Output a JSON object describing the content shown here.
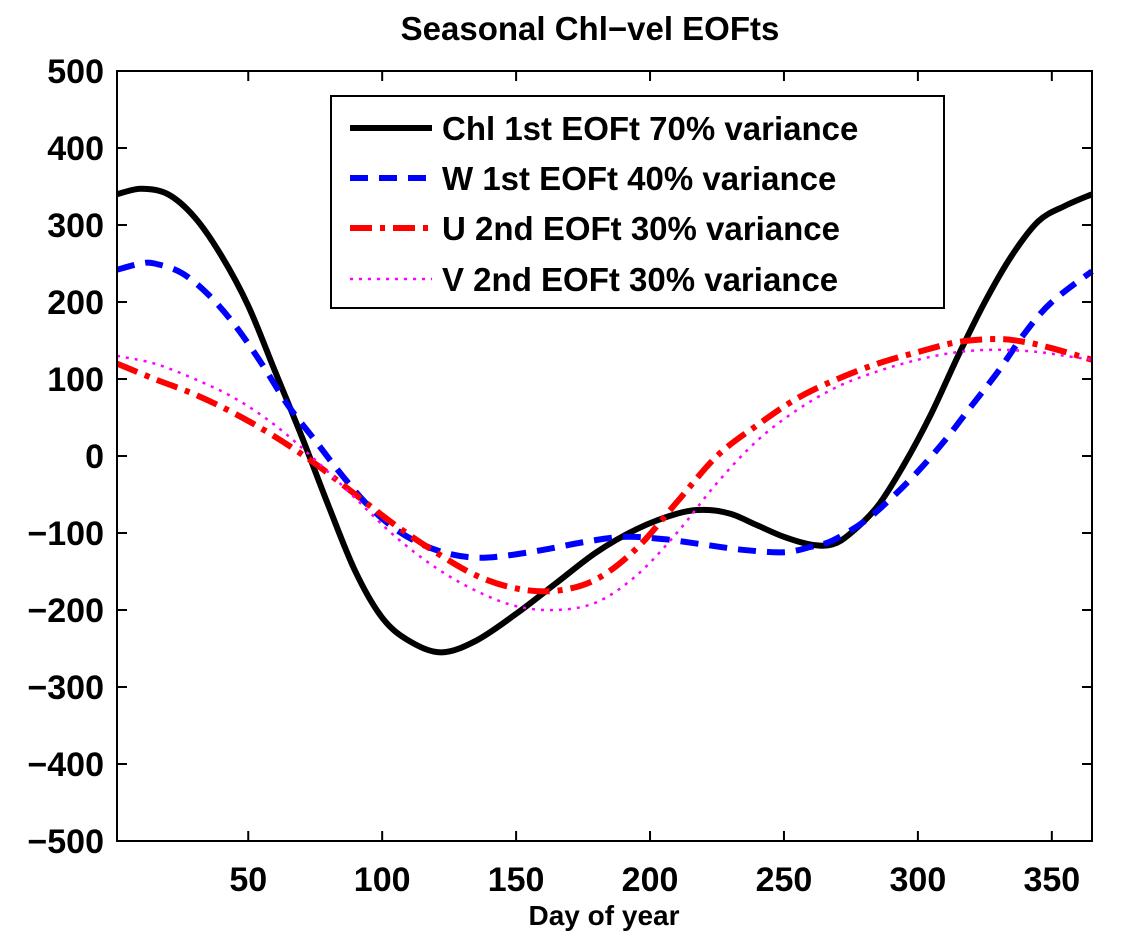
{
  "chart_data": {
    "type": "line",
    "title": "Seasonal Chl−vel EOFts",
    "xlabel": "Day of year",
    "ylabel": "",
    "xlim": [
      1,
      365
    ],
    "ylim": [
      -500,
      500
    ],
    "xticks": [
      50,
      100,
      150,
      200,
      250,
      300,
      350
    ],
    "xtick_labels": [
      "50",
      "100",
      "150",
      "200",
      "250",
      "300",
      "350"
    ],
    "yticks": [
      -500,
      -400,
      -300,
      -200,
      -100,
      0,
      100,
      200,
      300,
      400,
      500
    ],
    "ytick_labels": [
      "−500",
      "−400",
      "−300",
      "−200",
      "−100",
      "0",
      "100",
      "200",
      "300",
      "400",
      "500"
    ],
    "grid": false,
    "legend_position": "top-right",
    "series": [
      {
        "name": "Chl 1st EOFt 70% variance",
        "color": "#000000",
        "style": "solid",
        "x": [
          1,
          10,
          20,
          30,
          40,
          50,
          60,
          70,
          80,
          90,
          100,
          110,
          122,
          135,
          150,
          165,
          180,
          195,
          210,
          220,
          230,
          240,
          250,
          260,
          268,
          275,
          285,
          295,
          305,
          315,
          325,
          335,
          345,
          355,
          365
        ],
        "y": [
          340,
          347,
          340,
          310,
          260,
          195,
          110,
          25,
          -65,
          -150,
          -210,
          -240,
          -255,
          -240,
          -205,
          -165,
          -125,
          -95,
          -75,
          -70,
          -75,
          -90,
          -105,
          -115,
          -115,
          -100,
          -65,
          -10,
          55,
          130,
          200,
          260,
          305,
          325,
          340
        ]
      },
      {
        "name": "W 1st EOFt 40% variance",
        "color": "#0000ff",
        "style": "dashed",
        "x": [
          1,
          10,
          15,
          25,
          35,
          45,
          55,
          65,
          75,
          85,
          95,
          105,
          115,
          125,
          135,
          145,
          160,
          175,
          190,
          205,
          220,
          235,
          250,
          260,
          268,
          280,
          290,
          300,
          310,
          320,
          330,
          340,
          350,
          365
        ],
        "y": [
          242,
          250,
          250,
          238,
          210,
          170,
          120,
          65,
          20,
          -25,
          -65,
          -95,
          -115,
          -127,
          -132,
          -130,
          -122,
          -112,
          -105,
          -108,
          -115,
          -122,
          -125,
          -118,
          -110,
          -85,
          -55,
          -20,
          20,
          65,
          110,
          160,
          200,
          240
        ]
      },
      {
        "name": "U 2nd EOFt 30% variance",
        "color": "#ff0000",
        "style": "dashdot",
        "x": [
          1,
          15,
          30,
          45,
          60,
          75,
          90,
          105,
          120,
          135,
          150,
          165,
          180,
          195,
          210,
          225,
          240,
          255,
          270,
          285,
          300,
          315,
          330,
          340,
          350,
          365
        ],
        "y": [
          120,
          100,
          80,
          55,
          25,
          -10,
          -50,
          -90,
          -125,
          -155,
          -172,
          -175,
          -160,
          -120,
          -60,
          0,
          40,
          75,
          100,
          120,
          135,
          148,
          152,
          148,
          140,
          125
        ]
      },
      {
        "name": "V 2nd EOFt 30% variance",
        "color": "#ff00ff",
        "style": "dotted",
        "x": [
          1,
          15,
          30,
          45,
          60,
          75,
          90,
          105,
          120,
          135,
          150,
          165,
          180,
          195,
          210,
          225,
          240,
          255,
          270,
          285,
          300,
          315,
          330,
          345,
          355,
          365
        ],
        "y": [
          130,
          120,
          100,
          75,
          40,
          -5,
          -55,
          -105,
          -145,
          -175,
          -195,
          -200,
          -190,
          -155,
          -100,
          -35,
          20,
          60,
          90,
          110,
          125,
          135,
          138,
          135,
          130,
          125
        ]
      }
    ]
  }
}
